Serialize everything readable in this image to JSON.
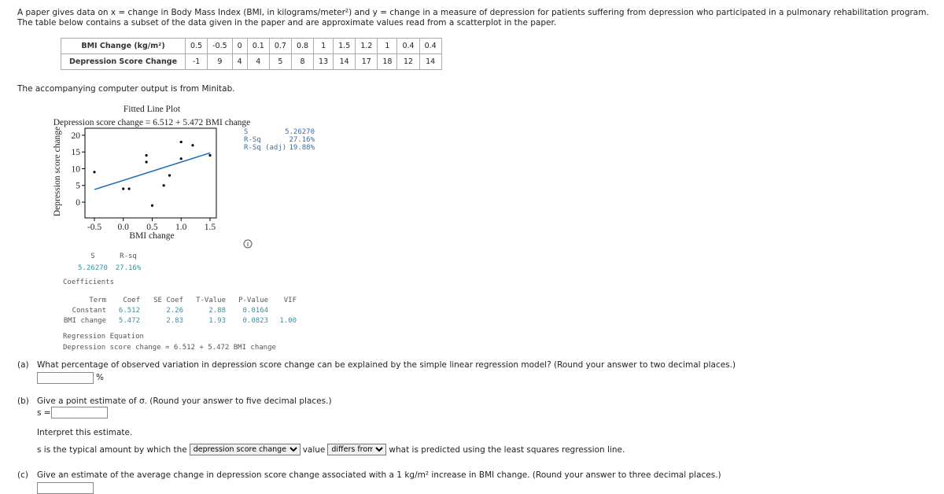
{
  "intro": "A paper gives data on x = change in Body Mass Index (BMI, in kilograms/meter²) and y = change in a measure of depression for patients suffering from depression who participated in a pulmonary rehabilitation program. The table below contains a subset of the data given in the paper and are approximate values read from a scatterplot in the paper.",
  "data_table": {
    "rows": [
      {
        "label": "BMI Change (kg/m²)",
        "values": [
          0.5,
          -0.5,
          0,
          0.1,
          0.7,
          0.8,
          1,
          1.5,
          1.2,
          1,
          0.4,
          0.4
        ]
      },
      {
        "label": "Depression Score Change",
        "values": [
          -1,
          9,
          4,
          4,
          5,
          8,
          13,
          14,
          17,
          18,
          12,
          14
        ]
      }
    ]
  },
  "minitab_note": "The accompanying computer output is from Minitab.",
  "plot": {
    "type": "scatter",
    "title": "Fitted Line Plot",
    "subtitle": "Depression score change = 6.512 + 5.472 BMI change",
    "x_label": "BMI change",
    "y_label": "Depression score change",
    "xlim": [
      -0.663,
      1.609
    ],
    "ylim": [
      -4.7,
      22.1
    ],
    "xticks": [
      -0.5,
      {
        "value": 0,
        "label": "0.0"
      },
      0.5,
      {
        "value": 1,
        "label": "1.0"
      },
      1.5
    ],
    "yticks": [
      0,
      5,
      10,
      15,
      20
    ],
    "point_color": "#000000",
    "line_color": "#1f6fb5",
    "stats": [
      [
        "S",
        "5.26270"
      ],
      [
        "R-Sq",
        "27.16%"
      ],
      [
        "R-Sq (adj)",
        "19.88%"
      ]
    ]
  },
  "summary": {
    "headers": [
      "S",
      "R-sq"
    ],
    "values": [
      "5.26270",
      "27.16%"
    ]
  },
  "coefficients": {
    "title": "Coefficients",
    "headers": [
      "Term",
      "Coef",
      "SE Coef",
      "T-Value",
      "P-Value",
      "VIF"
    ],
    "rows": [
      [
        "Constant",
        6.512,
        2.26,
        2.88,
        0.0164
      ],
      [
        "BMI change",
        5.472,
        2.83,
        1.93,
        0.0823,
        "1.00"
      ]
    ]
  },
  "regression_equation": {
    "title": "Regression Equation",
    "text": "Depression score change = 6.512 + 5.472 BMI change"
  },
  "questions": {
    "a": {
      "label": "(a)",
      "text": "What percentage of observed variation in depression score change can be explained by the simple linear regression model? (Round your answer to two decimal places.)",
      "unit": "%"
    },
    "b": {
      "label": "(b)",
      "text": "Give a point estimate of σ. (Round your answer to five decimal places.)",
      "input_label": "s =",
      "interpret_title": "Interpret this estimate.",
      "sentence_start": "s is the typical amount by which the",
      "select1": "depression score change",
      "sentence_mid": "value",
      "select2": "differs from",
      "sentence_end": "what is predicted using the least squares regression line."
    },
    "c": {
      "label": "(c)",
      "text": "Give an estimate of the average change in depression score change associated with a 1 kg/m² increase in BMI change. (Round your answer to three decimal places.)"
    }
  }
}
